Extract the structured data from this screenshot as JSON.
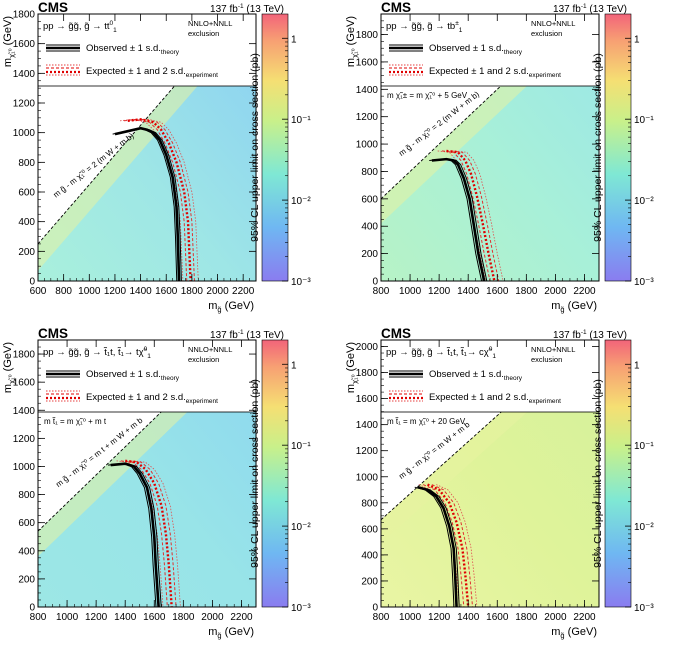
{
  "panels": [
    {
      "experiment": "CMS",
      "lumi": "137 fb",
      "lumi_sup": "-1",
      "energy": "(13 TeV)",
      "process_main": "pp → g̃g̃, g̃ → tt",
      "process_sup": "0",
      "process_sub": "1",
      "xs_label_1": "NNLO+NNLL",
      "xs_label_2": "exclusion",
      "legend_observed": "Observed ± 1 s.d.",
      "legend_observed_sub": "theory",
      "legend_expected": "Expected ± 1 and 2 s.d.",
      "legend_expected_sub": "experiment",
      "diag_label": "m",
      "diag_label_text": "m g̃ - m χ̃₁⁰ = 2 (m W + m b)",
      "extra_label": "",
      "xlabel_main": "m",
      "xlabel_sub": "g̃",
      "xlabel_unit": "(GeV)",
      "ylabel_main": "m",
      "ylabel_sub": "χ̃₁⁰",
      "ylabel_unit": "(GeV)",
      "zlabel": "95% CL upper limit on cross section (pb)",
      "chart_data": {
        "type": "heatmap",
        "xlim": [
          600,
          2300
        ],
        "ylim": [
          0,
          1800
        ],
        "x_ticks": [
          600,
          800,
          1000,
          1200,
          1400,
          1600,
          1800,
          2000,
          2200
        ],
        "y_ticks": [
          0,
          200,
          400,
          600,
          800,
          1000,
          1200,
          1400,
          1600,
          1800
        ],
        "z_ticks": [
          "1",
          "10⁻¹",
          "10⁻²",
          "10⁻³"
        ],
        "z_log_range": [
          -3,
          0.3
        ],
        "diag_offset": 350,
        "observed": [
          [
            1200,
            990
          ],
          [
            1300,
            1010
          ],
          [
            1400,
            1030
          ],
          [
            1450,
            1020
          ],
          [
            1500,
            1000
          ],
          [
            1550,
            950
          ],
          [
            1600,
            850
          ],
          [
            1650,
            700
          ],
          [
            1680,
            500
          ],
          [
            1690,
            300
          ],
          [
            1700,
            0
          ]
        ],
        "expected": [
          [
            1300,
            1080
          ],
          [
            1400,
            1090
          ],
          [
            1500,
            1070
          ],
          [
            1560,
            1020
          ],
          [
            1620,
            930
          ],
          [
            1680,
            800
          ],
          [
            1740,
            600
          ],
          [
            1770,
            400
          ],
          [
            1780,
            200
          ],
          [
            1790,
            0
          ]
        ]
      }
    },
    {
      "experiment": "CMS",
      "lumi": "137 fb",
      "lumi_sup": "-1",
      "energy": "(13 TeV)",
      "process_main": "pp → g̃g̃, g̃ → tb",
      "process_sup": "±",
      "process_sub": "1",
      "xs_label_1": "NNLO+NNLL",
      "xs_label_2": "exclusion",
      "legend_observed": "Observed ± 1 s.d.",
      "legend_observed_sub": "theory",
      "legend_expected": "Expected ± 1 and 2 s.d.",
      "legend_expected_sub": "experiment",
      "diag_label": "m",
      "diag_label_text": "m g̃ - m χ̃₁⁰ = 2 (m W + m b)",
      "extra_label": "m χ̃₁± = m χ̃₁⁰ + 5 GeV",
      "xlabel_main": "m",
      "xlabel_sub": "g̃",
      "xlabel_unit": "(GeV)",
      "ylabel_main": "m",
      "ylabel_sub": "χ̃₁⁰",
      "ylabel_unit": "(GeV)",
      "zlabel": "95% CL upper limit on cross section (pb)",
      "chart_data": {
        "type": "heatmap",
        "xlim": [
          800,
          2300
        ],
        "ylim": [
          0,
          1950
        ],
        "x_ticks": [
          800,
          1000,
          1200,
          1400,
          1600,
          1800,
          2000,
          2200
        ],
        "y_ticks": [
          0,
          200,
          400,
          600,
          800,
          1000,
          1200,
          1400,
          1600,
          1800
        ],
        "z_ticks": [
          "1",
          "10⁻¹",
          "10⁻²",
          "10⁻³"
        ],
        "z_log_range": [
          -3,
          0.3
        ],
        "diag_offset": 200,
        "observed": [
          [
            1150,
            880
          ],
          [
            1250,
            890
          ],
          [
            1300,
            880
          ],
          [
            1330,
            850
          ],
          [
            1370,
            750
          ],
          [
            1410,
            600
          ],
          [
            1440,
            400
          ],
          [
            1470,
            200
          ],
          [
            1510,
            0
          ]
        ],
        "expected": [
          [
            1250,
            950
          ],
          [
            1330,
            940
          ],
          [
            1380,
            880
          ],
          [
            1420,
            780
          ],
          [
            1460,
            620
          ],
          [
            1500,
            420
          ],
          [
            1540,
            200
          ],
          [
            1580,
            0
          ]
        ]
      }
    },
    {
      "experiment": "CMS",
      "lumi": "137 fb",
      "lumi_sup": "-1",
      "energy": "(13 TeV)",
      "process_main": "pp → g̃g̃, g̃ → t̃₁t, t̃₁→ tχ̃",
      "process_sup": "0",
      "process_sub": "1",
      "xs_label_1": "NNLO+NNLL",
      "xs_label_2": "exclusion",
      "legend_observed": "Observed ± 1 s.d.",
      "legend_observed_sub": "theory",
      "legend_expected": "Expected ± 1 and 2 s.d.",
      "legend_expected_sub": "experiment",
      "diag_label": "m",
      "diag_label_text": "m g̃ - m χ̃₁⁰ = m t + m W + m b",
      "extra_label": "m t̃₁ = m χ̃₁⁰ + m t",
      "xlabel_main": "m",
      "xlabel_sub": "g̃",
      "xlabel_unit": "(GeV)",
      "ylabel_main": "m",
      "ylabel_sub": "χ̃₁⁰",
      "ylabel_unit": "(GeV)",
      "zlabel": "95% CL upper limit on cross section (pb)",
      "chart_data": {
        "type": "heatmap",
        "xlim": [
          800,
          2300
        ],
        "ylim": [
          0,
          1900
        ],
        "x_ticks": [
          800,
          1000,
          1200,
          1400,
          1600,
          1800,
          2000,
          2200
        ],
        "y_ticks": [
          0,
          200,
          400,
          600,
          800,
          1000,
          1200,
          1400,
          1600,
          1800
        ],
        "z_ticks": [
          "1",
          "10⁻¹",
          "10⁻²",
          "10⁻³"
        ],
        "z_log_range": [
          -3,
          0.3
        ],
        "diag_offset": 260,
        "observed": [
          [
            1300,
            1010
          ],
          [
            1400,
            1020
          ],
          [
            1460,
            1000
          ],
          [
            1500,
            950
          ],
          [
            1550,
            850
          ],
          [
            1580,
            700
          ],
          [
            1600,
            500
          ],
          [
            1610,
            300
          ],
          [
            1630,
            0
          ]
        ],
        "expected": [
          [
            1400,
            1040
          ],
          [
            1480,
            1030
          ],
          [
            1540,
            980
          ],
          [
            1600,
            880
          ],
          [
            1650,
            720
          ],
          [
            1680,
            520
          ],
          [
            1700,
            300
          ],
          [
            1720,
            0
          ]
        ]
      }
    },
    {
      "experiment": "CMS",
      "lumi": "137 fb",
      "lumi_sup": "-1",
      "energy": "(13 TeV)",
      "process_main": "pp → g̃g̃, g̃ → t̃₁t, t̃₁→ cχ̃",
      "process_sup": "0",
      "process_sub": "1",
      "xs_label_1": "NNLO+NNLL",
      "xs_label_2": "exclusion",
      "legend_observed": "Observed ± 1 s.d.",
      "legend_observed_sub": "theory",
      "legend_expected": "Expected ± 1 and 2 s.d.",
      "legend_expected_sub": "experiment",
      "diag_label": "m",
      "diag_label_text": "m g̃ - m χ̃₁⁰ = m W + m b",
      "extra_label": "m t̃₁ = m χ̃₁⁰ + 20 GeV",
      "xlabel_main": "m",
      "xlabel_sub": "g̃",
      "xlabel_unit": "(GeV)",
      "ylabel_main": "m",
      "ylabel_sub": "χ̃₁⁰",
      "ylabel_unit": "(GeV)",
      "zlabel": "95% CL upper limit on cross section (pb)",
      "chart_data": {
        "type": "heatmap",
        "xlim": [
          800,
          2300
        ],
        "ylim": [
          0,
          2050
        ],
        "x_ticks": [
          800,
          1000,
          1200,
          1400,
          1600,
          1800,
          2000,
          2200
        ],
        "y_ticks": [
          0,
          200,
          400,
          600,
          800,
          1000,
          1200,
          1400,
          1600,
          1800,
          2000
        ],
        "z_ticks": [
          "1",
          "10⁻¹",
          "10⁻²",
          "10⁻³"
        ],
        "z_log_range": [
          -3,
          0.3
        ],
        "diag_offset": 130,
        "observed": [
          [
            1050,
            920
          ],
          [
            1120,
            900
          ],
          [
            1180,
            850
          ],
          [
            1230,
            760
          ],
          [
            1270,
            620
          ],
          [
            1300,
            450
          ],
          [
            1310,
            250
          ],
          [
            1320,
            0
          ]
        ],
        "expected": [
          [
            1120,
            940
          ],
          [
            1200,
            900
          ],
          [
            1270,
            800
          ],
          [
            1320,
            650
          ],
          [
            1360,
            450
          ],
          [
            1380,
            250
          ],
          [
            1400,
            0
          ]
        ]
      }
    }
  ]
}
